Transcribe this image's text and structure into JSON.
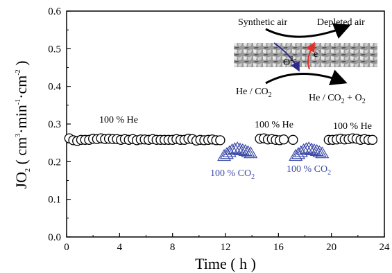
{
  "chart_data": {
    "type": "scatter",
    "xlabel": "Time ( h )",
    "ylabel": "JO2 ( cm3·min-1·cm-2 )",
    "xlim": [
      0,
      24
    ],
    "ylim": [
      0.0,
      0.6
    ],
    "xticks": [
      "0",
      "4",
      "8",
      "12",
      "16",
      "20",
      "24"
    ],
    "yticks": [
      "0.0",
      "0.1",
      "0.2",
      "0.3",
      "0.4",
      "0.5",
      "0.6"
    ],
    "grid": false,
    "series": [
      {
        "marker": "open-circle",
        "x": [
          0.2,
          0.5,
          0.8,
          1.1,
          1.4,
          1.7,
          2.0,
          2.3,
          2.6,
          2.9,
          3.2,
          3.5,
          3.8,
          4.1,
          4.4,
          4.7,
          5.0,
          5.3,
          5.6,
          5.9,
          6.2,
          6.5,
          6.8,
          7.1,
          7.4,
          7.7,
          8.0,
          8.3,
          8.6,
          8.9,
          9.2,
          9.5,
          9.8,
          10.1,
          10.4,
          10.7,
          11.0,
          11.3,
          11.6,
          14.6,
          14.9,
          15.2,
          15.5,
          15.8,
          16.1,
          16.4,
          17.1,
          19.8,
          20.1,
          20.4,
          20.7,
          21.0,
          21.3,
          21.6,
          21.9,
          22.2,
          22.5,
          22.8,
          23.1
        ],
        "y": [
          0.262,
          0.257,
          0.255,
          0.258,
          0.258,
          0.258,
          0.261,
          0.26,
          0.262,
          0.26,
          0.261,
          0.26,
          0.26,
          0.258,
          0.26,
          0.258,
          0.26,
          0.257,
          0.259,
          0.259,
          0.258,
          0.26,
          0.258,
          0.258,
          0.258,
          0.258,
          0.258,
          0.26,
          0.258,
          0.258,
          0.261,
          0.26,
          0.256,
          0.258,
          0.257,
          0.258,
          0.259,
          0.257,
          0.257,
          0.261,
          0.262,
          0.259,
          0.26,
          0.258,
          0.257,
          0.259,
          0.258,
          0.258,
          0.258,
          0.259,
          0.261,
          0.259,
          0.26,
          0.262,
          0.261,
          0.258,
          0.26,
          0.258,
          0.258
        ]
      },
      {
        "marker": "open-triangle",
        "color": "#3b4aa8",
        "x": [
          11.9,
          12.1,
          12.3,
          12.5,
          12.7,
          12.9,
          13.1,
          13.3,
          13.5,
          13.7,
          13.9,
          17.3,
          17.5,
          17.7,
          17.9,
          18.1,
          18.3,
          18.5,
          18.7,
          18.9,
          19.1,
          19.3
        ],
        "y": [
          0.215,
          0.22,
          0.225,
          0.23,
          0.233,
          0.235,
          0.232,
          0.23,
          0.228,
          0.225,
          0.222,
          0.215,
          0.22,
          0.225,
          0.23,
          0.233,
          0.235,
          0.232,
          0.23,
          0.228,
          0.225,
          0.222
        ]
      }
    ],
    "annotations": [
      {
        "text": "100 % He",
        "x": 3.8,
        "y": 0.292
      },
      {
        "text": "100 % He",
        "x": 15.4,
        "y": 0.282
      },
      {
        "text": "100 % He",
        "x": 21.8,
        "y": 0.28
      },
      {
        "text": "100 % CO2",
        "x": 13.3,
        "y": 0.2
      },
      {
        "text": "100 % CO2",
        "x": 18.5,
        "y": 0.2
      }
    ],
    "inset": {
      "top_left": "Synthetic air",
      "top_right": "Depleted air",
      "bottom_left": "He / CO2",
      "bottom_right": "He / CO2 + O2",
      "oxide_ion": "O2-",
      "electron": "e-"
    },
    "colors": {
      "triangles": "#3b4aa8",
      "ion_arrow": "#2a2a8a",
      "electron_arrow": "#e0302a"
    }
  }
}
